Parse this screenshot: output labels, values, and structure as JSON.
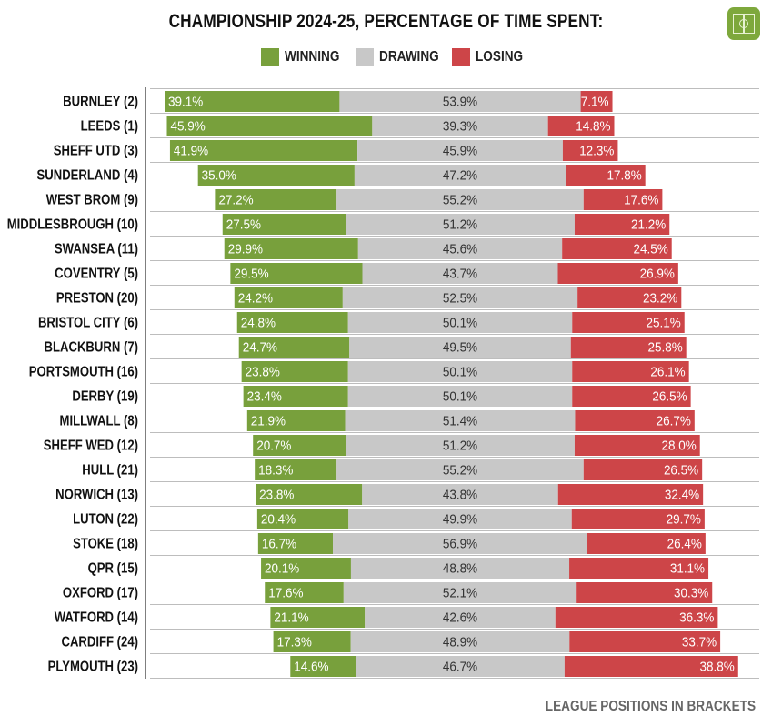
{
  "title": "CHAMPIONSHIP 2024-25, PERCENTAGE OF TIME SPENT:",
  "legend": {
    "winning": "WINNING",
    "drawing": "DRAWING",
    "losing": "LOSING"
  },
  "colors": {
    "winning": "#78a03c",
    "drawing": "#c8c8c8",
    "losing": "#cd4548",
    "text_dark": "#333333",
    "text_light": "#ffffff"
  },
  "footer": "LEAGUE POSITIONS IN BRACKETS",
  "chart_data": {
    "type": "bar",
    "orientation": "horizontal",
    "stacked": true,
    "title": "CHAMPIONSHIP 2024-25, PERCENTAGE OF TIME SPENT:",
    "xlabel": "",
    "ylabel": "",
    "xlim": [
      0,
      100
    ],
    "value_suffix": "%",
    "categories": [
      "BURNLEY (2)",
      "LEEDS (1)",
      "SHEFF UTD (3)",
      "SUNDERLAND (4)",
      "WEST BROM (9)",
      "MIDDLESBROUGH (10)",
      "SWANSEA (11)",
      "COVENTRY (5)",
      "PRESTON (20)",
      "BRISTOL CITY (6)",
      "BLACKBURN (7)",
      "PORTSMOUTH (16)",
      "DERBY (19)",
      "MILLWALL (8)",
      "SHEFF WED (12)",
      "HULL (21)",
      "NORWICH (13)",
      "LUTON (22)",
      "STOKE (18)",
      "QPR (15)",
      "OXFORD (17)",
      "WATFORD (14)",
      "CARDIFF (24)",
      "PLYMOUTH (23)"
    ],
    "series": [
      {
        "name": "WINNING",
        "values": [
          39.1,
          45.9,
          41.9,
          35.0,
          27.2,
          27.5,
          29.9,
          29.5,
          24.2,
          24.8,
          24.7,
          23.8,
          23.4,
          21.9,
          20.7,
          18.3,
          23.8,
          20.4,
          16.7,
          20.1,
          17.6,
          21.1,
          17.3,
          14.6
        ]
      },
      {
        "name": "DRAWING",
        "values": [
          53.9,
          39.3,
          45.9,
          47.2,
          55.2,
          51.2,
          45.6,
          43.7,
          52.5,
          50.1,
          49.5,
          50.1,
          50.1,
          51.4,
          51.2,
          55.2,
          43.8,
          49.9,
          56.9,
          48.8,
          52.1,
          42.6,
          48.9,
          46.7
        ]
      },
      {
        "name": "LOSING",
        "values": [
          7.1,
          14.8,
          12.3,
          17.8,
          17.6,
          21.2,
          24.5,
          26.9,
          23.2,
          25.1,
          25.8,
          26.1,
          26.5,
          26.7,
          28.0,
          26.5,
          32.4,
          29.7,
          26.4,
          31.1,
          30.3,
          36.3,
          33.7,
          38.8
        ]
      }
    ],
    "labels": {
      "winning": [
        "39.1%",
        "45.9%",
        "41.9%",
        "35.0%",
        "27.2%",
        "27.5%",
        "29.9%",
        "29.5%",
        "24.2%",
        "24.8%",
        "24.7%",
        "23.8%",
        "23.4%",
        "21.9%",
        "20.7%",
        "18.3%",
        "23.8%",
        "20.4%",
        "16.7%",
        "20.1%",
        "17.6%",
        "21.1%",
        "17.3%",
        "14.6%"
      ],
      "drawing": [
        "53.9%",
        "39.3%",
        "45.9%",
        "47.2%",
        "55.2%",
        "51.2%",
        "45.6%",
        "43.7%",
        "52.5%",
        "50.1%",
        "49.5%",
        "50.1%",
        "50.1%",
        "51.4%",
        "51.2%",
        "55.2%",
        "43.8%",
        "49.9%",
        "56.9%",
        "48.8%",
        "52.1%",
        "42.6%",
        "48.9%",
        "46.7%"
      ],
      "losing": [
        "7.1%",
        "14.8%",
        "12.3%",
        "17.8%",
        "17.6%",
        "21.2%",
        "24.5%",
        "26.9%",
        "23.2%",
        "25.1%",
        "25.8%",
        "26.1%",
        "26.5%",
        "26.7%",
        "28.0%",
        "26.5%",
        "32.4%",
        "29.7%",
        "26.4%",
        "31.1%",
        "30.3%",
        "36.3%",
        "33.7%",
        "38.8%"
      ]
    },
    "legend_position": "top-center",
    "grid": false
  }
}
